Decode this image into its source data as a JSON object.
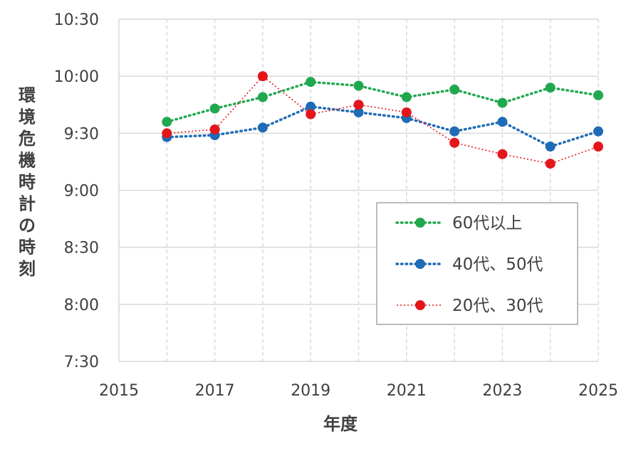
{
  "chart_data": {
    "type": "line",
    "xlabel": "年度",
    "ylabel": "環境危機時計の時刻",
    "xlim": [
      2015,
      2025
    ],
    "ylim": [
      "7:30",
      "10:30"
    ],
    "x_ticks": [
      "2015",
      "2017",
      "2019",
      "2021",
      "2023",
      "2025"
    ],
    "y_ticks": [
      "7:30",
      "8:00",
      "8:30",
      "9:00",
      "9:30",
      "10:00",
      "10:30"
    ],
    "grid": "vertical and horizontal, dashed vertical",
    "legend_position": "center-right",
    "series": [
      {
        "name": "60代以上",
        "color": "#21a84f",
        "line_style": "dotted-thick",
        "x": [
          2016,
          2017,
          2018,
          2019,
          2020,
          2021,
          2022,
          2023,
          2024,
          2025
        ],
        "y": [
          "9:36",
          "9:43",
          "9:49",
          "9:57",
          "9:55",
          "9:49",
          "9:53",
          "9:46",
          "9:54",
          "9:50"
        ]
      },
      {
        "name": "40代、50代",
        "color": "#1f6bb5",
        "line_style": "dotted-thick",
        "x": [
          2016,
          2017,
          2018,
          2019,
          2020,
          2021,
          2022,
          2023,
          2024,
          2025
        ],
        "y": [
          "9:28",
          "9:29",
          "9:33",
          "9:44",
          "9:41",
          "9:38",
          "9:31",
          "9:36",
          "9:23",
          "9:31"
        ]
      },
      {
        "name": "20代、30代",
        "color": "#e4161c",
        "line_style": "dotted-thin",
        "x": [
          2016,
          2017,
          2018,
          2019,
          2020,
          2021,
          2022,
          2023,
          2024,
          2025
        ],
        "y": [
          "9:30",
          "9:32",
          "10:00",
          "9:40",
          "9:45",
          "9:41",
          "9:25",
          "9:19",
          "9:14",
          "9:23"
        ]
      }
    ]
  }
}
